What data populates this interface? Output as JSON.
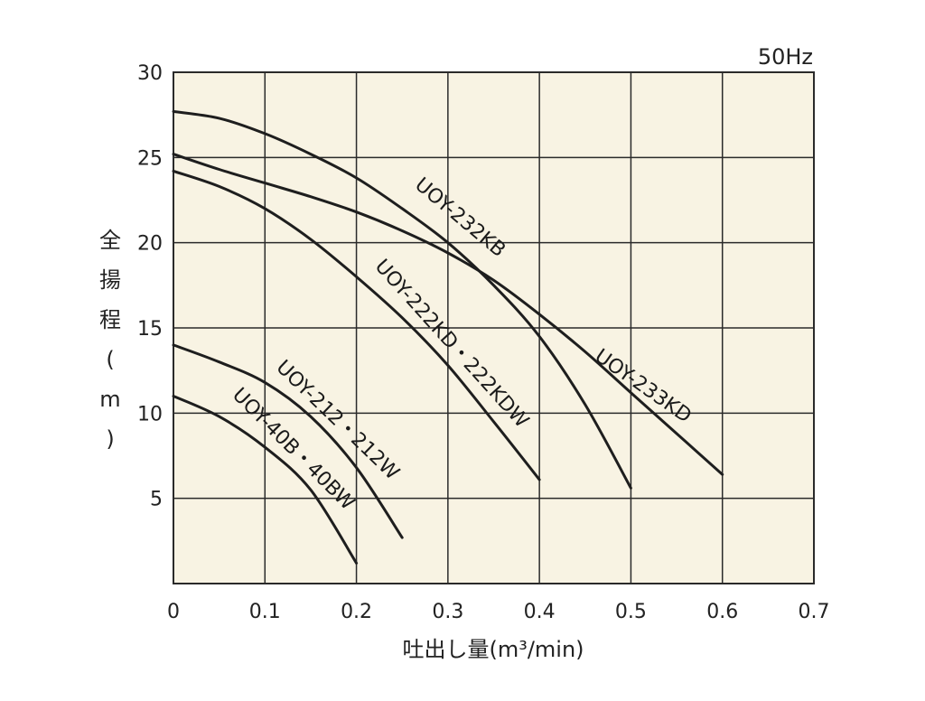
{
  "chart_data": {
    "type": "line",
    "frequency_label": "50Hz",
    "xlabel": "吐出し量(m³/min)",
    "ylabel": "全揚程(m)",
    "xlim": [
      0,
      0.7
    ],
    "ylim": [
      0,
      30
    ],
    "x_ticks": [
      0,
      0.1,
      0.2,
      0.3,
      0.4,
      0.5,
      0.6,
      0.7
    ],
    "x_tick_labels": [
      "0",
      "0.1",
      "0.2",
      "0.3",
      "0.4",
      "0.5",
      "0.6",
      "0.7"
    ],
    "y_ticks": [
      5,
      10,
      15,
      20,
      25,
      30
    ],
    "y_tick_labels": [
      "5",
      "10",
      "15",
      "20",
      "25",
      "30"
    ],
    "grid": true,
    "background_color": "#f8f3e3",
    "line_color": "#1e1e1e",
    "series": [
      {
        "name": "UOY-232KB",
        "x": [
          0,
          0.05,
          0.1,
          0.15,
          0.2,
          0.25,
          0.3,
          0.35,
          0.4,
          0.45,
          0.5
        ],
        "y": [
          27.7,
          27.3,
          26.4,
          25.2,
          23.8,
          22.0,
          20.0,
          17.5,
          14.5,
          10.5,
          5.6
        ]
      },
      {
        "name": "UOY-233KD",
        "x": [
          0,
          0.05,
          0.1,
          0.15,
          0.2,
          0.25,
          0.3,
          0.35,
          0.4,
          0.45,
          0.5,
          0.55,
          0.6
        ],
        "y": [
          25.2,
          24.3,
          23.5,
          22.7,
          21.8,
          20.7,
          19.4,
          17.8,
          15.8,
          13.6,
          11.2,
          8.8,
          6.4
        ]
      },
      {
        "name": "UOY-222KD・222KDW",
        "x": [
          0,
          0.05,
          0.1,
          0.15,
          0.2,
          0.25,
          0.3,
          0.35,
          0.4
        ],
        "y": [
          24.2,
          23.3,
          22.0,
          20.2,
          18.0,
          15.6,
          12.8,
          9.5,
          6.1
        ]
      },
      {
        "name": "UOY-212・212W",
        "x": [
          0,
          0.05,
          0.1,
          0.15,
          0.2,
          0.25
        ],
        "y": [
          14.0,
          13.0,
          11.8,
          9.8,
          6.8,
          2.7
        ]
      },
      {
        "name": "UOY-40B・40BW",
        "x": [
          0,
          0.05,
          0.1,
          0.15,
          0.2
        ],
        "y": [
          11.0,
          9.8,
          8.0,
          5.5,
          1.2
        ]
      }
    ]
  }
}
